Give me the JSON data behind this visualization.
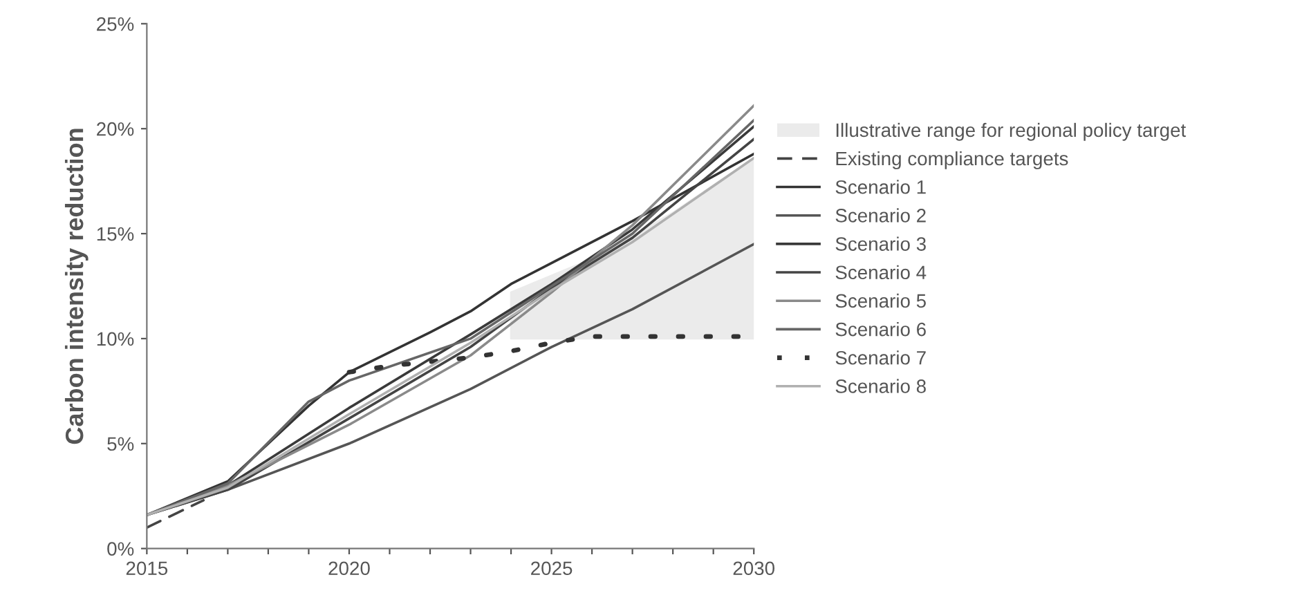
{
  "chart_data": {
    "type": "line",
    "ylabel": "Carbon intensity reduction",
    "xlim": [
      2015,
      2030
    ],
    "ylim": [
      0,
      25
    ],
    "xticks": [
      2015,
      {
        "value": 2016,
        "label": null
      },
      {
        "value": 2017,
        "label": null
      },
      {
        "value": 2018,
        "label": null
      },
      {
        "value": 2019,
        "label": null
      },
      2020,
      {
        "value": 2021,
        "label": null
      },
      {
        "value": 2022,
        "label": null
      },
      {
        "value": 2023,
        "label": null
      },
      {
        "value": 2024,
        "label": null
      },
      2025,
      {
        "value": 2026,
        "label": null
      },
      {
        "value": 2027,
        "label": null
      },
      {
        "value": 2028,
        "label": null
      },
      {
        "value": 2029,
        "label": null
      },
      2030
    ],
    "yticks": [
      {
        "value": 0,
        "label": "0%"
      },
      {
        "value": 5,
        "label": "5%"
      },
      {
        "value": 10,
        "label": "10%"
      },
      {
        "value": 15,
        "label": "15%"
      },
      {
        "value": 20,
        "label": "20%"
      },
      {
        "value": 25,
        "label": "25%"
      }
    ],
    "grid": false,
    "legend": "right",
    "series": [
      {
        "name": "Illustrative range for regional policy target",
        "type": "line",
        "color": "#ebebeb",
        "x": [
          2024,
          2026,
          2028,
          2030
        ],
        "lower": [
          10,
          10,
          10,
          10
        ],
        "upper": [
          12.2,
          13.8,
          16.0,
          18.6
        ],
        "values": [
          null,
          null,
          null,
          null
        ]
      },
      {
        "name": "Existing compliance targets",
        "color": "#444444",
        "line_style": "dashed",
        "x": [
          2015,
          2016.4
        ],
        "values": [
          1.0,
          2.3
        ]
      },
      {
        "name": "Scenario 1",
        "color": "#333333",
        "line_style": "solid",
        "x": [
          2015,
          2017,
          2019,
          2020,
          2022,
          2023,
          2024,
          2025,
          2027,
          2030
        ],
        "values": [
          1.6,
          3.2,
          6.8,
          8.4,
          10.3,
          11.3,
          12.6,
          13.6,
          15.6,
          18.8
        ]
      },
      {
        "name": "Scenario 2",
        "color": "#555555",
        "line_style": "solid",
        "x": [
          2015,
          2017,
          2020,
          2023,
          2025,
          2027,
          2030
        ],
        "values": [
          1.6,
          2.8,
          5.0,
          7.6,
          9.6,
          11.4,
          14.5
        ]
      },
      {
        "name": "Scenario 3",
        "color": "#3a3a3a",
        "line_style": "solid",
        "x": [
          2015,
          2017,
          2020,
          2023,
          2025,
          2027,
          2030
        ],
        "values": [
          1.6,
          3.0,
          6.7,
          10.2,
          12.6,
          15.2,
          20.1
        ]
      },
      {
        "name": "Scenario 4",
        "color": "#444444",
        "line_style": "solid",
        "x": [
          2015,
          2017,
          2020,
          2023,
          2025,
          2027,
          2030
        ],
        "values": [
          1.6,
          2.8,
          6.2,
          9.6,
          12.4,
          14.8,
          19.5
        ]
      },
      {
        "name": "Scenario 5",
        "color": "#8a8a8a",
        "line_style": "solid",
        "x": [
          2015,
          2017,
          2020,
          2023,
          2025,
          2027,
          2030
        ],
        "values": [
          1.6,
          3.0,
          5.9,
          9.2,
          12.2,
          15.4,
          21.1
        ]
      },
      {
        "name": "Scenario 6",
        "color": "#666666",
        "line_style": "solid",
        "x": [
          2015,
          2017,
          2019,
          2020,
          2023,
          2025,
          2027,
          2030
        ],
        "values": [
          1.6,
          3.1,
          7.0,
          8.0,
          10.0,
          12.5,
          15.0,
          20.4
        ]
      },
      {
        "name": "Scenario 7",
        "color": "#333333",
        "line_style": "dotted",
        "x": [
          2020,
          2021,
          2022,
          2023,
          2024,
          2025,
          2026,
          2030
        ],
        "values": [
          8.4,
          8.7,
          8.9,
          9.1,
          9.4,
          9.8,
          10.1,
          10.1
        ]
      },
      {
        "name": "Scenario 8",
        "color": "#b0b0b0",
        "line_style": "solid",
        "x": [
          2015,
          2017,
          2020,
          2023,
          2025,
          2027,
          2030
        ],
        "values": [
          1.6,
          2.9,
          6.4,
          9.8,
          12.3,
          14.6,
          18.6
        ]
      }
    ]
  }
}
